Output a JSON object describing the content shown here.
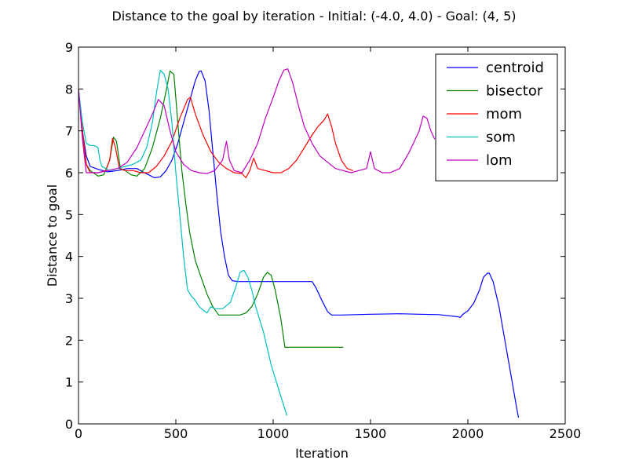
{
  "chart_data": {
    "type": "line",
    "title": "Distance to the goal by iteration - Initial: (-4.0, 4.0) - Goal: (4, 5)",
    "xlabel": "Iteration",
    "ylabel": "Distance to goal",
    "xlim": [
      0,
      2500
    ],
    "ylim": [
      0,
      9
    ],
    "xticks": [
      0,
      500,
      1000,
      1500,
      2000,
      2500
    ],
    "yticks": [
      0,
      1,
      2,
      3,
      4,
      5,
      6,
      7,
      8,
      9
    ],
    "grid": false,
    "legend_position": "top-right",
    "series": [
      {
        "name": "centroid",
        "color": "#0000ff",
        "points": [
          [
            0,
            8.0
          ],
          [
            20,
            7.0
          ],
          [
            40,
            6.4
          ],
          [
            60,
            6.15
          ],
          [
            100,
            6.08
          ],
          [
            150,
            6.02
          ],
          [
            200,
            6.05
          ],
          [
            250,
            6.1
          ],
          [
            300,
            6.1
          ],
          [
            330,
            6.02
          ],
          [
            360,
            5.95
          ],
          [
            390,
            5.88
          ],
          [
            420,
            5.9
          ],
          [
            450,
            6.05
          ],
          [
            480,
            6.3
          ],
          [
            510,
            6.7
          ],
          [
            540,
            7.2
          ],
          [
            570,
            7.7
          ],
          [
            600,
            8.2
          ],
          [
            620,
            8.42
          ],
          [
            630,
            8.43
          ],
          [
            650,
            8.2
          ],
          [
            670,
            7.5
          ],
          [
            690,
            6.5
          ],
          [
            710,
            5.5
          ],
          [
            730,
            4.6
          ],
          [
            750,
            4.0
          ],
          [
            770,
            3.55
          ],
          [
            790,
            3.42
          ],
          [
            820,
            3.4
          ],
          [
            1000,
            3.4
          ],
          [
            1200,
            3.4
          ],
          [
            1220,
            3.25
          ],
          [
            1250,
            2.95
          ],
          [
            1280,
            2.68
          ],
          [
            1300,
            2.6
          ],
          [
            1350,
            2.6
          ],
          [
            1500,
            2.62
          ],
          [
            1650,
            2.63
          ],
          [
            1750,
            2.62
          ],
          [
            1850,
            2.61
          ],
          [
            1950,
            2.56
          ],
          [
            1960,
            2.54
          ],
          [
            1975,
            2.62
          ],
          [
            2000,
            2.7
          ],
          [
            2030,
            2.88
          ],
          [
            2060,
            3.2
          ],
          [
            2080,
            3.5
          ],
          [
            2100,
            3.6
          ],
          [
            2110,
            3.6
          ],
          [
            2130,
            3.4
          ],
          [
            2160,
            2.8
          ],
          [
            2190,
            2.0
          ],
          [
            2220,
            1.2
          ],
          [
            2250,
            0.4
          ],
          [
            2260,
            0.15
          ]
        ]
      },
      {
        "name": "bisector",
        "color": "#008000",
        "points": [
          [
            0,
            8.0
          ],
          [
            20,
            7.0
          ],
          [
            40,
            6.2
          ],
          [
            60,
            6.05
          ],
          [
            100,
            5.92
          ],
          [
            130,
            5.95
          ],
          [
            160,
            6.3
          ],
          [
            180,
            6.85
          ],
          [
            195,
            6.75
          ],
          [
            215,
            6.1
          ],
          [
            240,
            6.05
          ],
          [
            270,
            5.95
          ],
          [
            300,
            5.92
          ],
          [
            340,
            6.1
          ],
          [
            380,
            6.6
          ],
          [
            420,
            7.3
          ],
          [
            450,
            7.95
          ],
          [
            470,
            8.43
          ],
          [
            490,
            8.35
          ],
          [
            510,
            7.2
          ],
          [
            530,
            6.1
          ],
          [
            550,
            5.3
          ],
          [
            570,
            4.6
          ],
          [
            600,
            3.9
          ],
          [
            630,
            3.5
          ],
          [
            660,
            3.1
          ],
          [
            690,
            2.8
          ],
          [
            720,
            2.6
          ],
          [
            760,
            2.6
          ],
          [
            800,
            2.6
          ],
          [
            830,
            2.6
          ],
          [
            860,
            2.65
          ],
          [
            890,
            2.8
          ],
          [
            920,
            3.1
          ],
          [
            950,
            3.5
          ],
          [
            970,
            3.62
          ],
          [
            990,
            3.55
          ],
          [
            1010,
            3.2
          ],
          [
            1040,
            2.5
          ],
          [
            1060,
            1.83
          ],
          [
            1100,
            1.83
          ],
          [
            1200,
            1.83
          ],
          [
            1300,
            1.83
          ],
          [
            1360,
            1.83
          ]
        ]
      },
      {
        "name": "mom",
        "color": "#ff0000",
        "points": [
          [
            0,
            8.0
          ],
          [
            20,
            7.0
          ],
          [
            40,
            6.2
          ],
          [
            60,
            6.0
          ],
          [
            100,
            6.0
          ],
          [
            140,
            6.05
          ],
          [
            160,
            6.3
          ],
          [
            175,
            6.82
          ],
          [
            190,
            6.6
          ],
          [
            210,
            6.1
          ],
          [
            240,
            6.05
          ],
          [
            280,
            6.05
          ],
          [
            320,
            6.0
          ],
          [
            360,
            6.0
          ],
          [
            400,
            6.15
          ],
          [
            440,
            6.4
          ],
          [
            480,
            6.75
          ],
          [
            520,
            7.3
          ],
          [
            560,
            7.75
          ],
          [
            575,
            7.8
          ],
          [
            600,
            7.4
          ],
          [
            640,
            6.9
          ],
          [
            680,
            6.5
          ],
          [
            720,
            6.25
          ],
          [
            760,
            6.1
          ],
          [
            800,
            6.0
          ],
          [
            840,
            5.98
          ],
          [
            860,
            5.88
          ],
          [
            880,
            6.05
          ],
          [
            900,
            6.35
          ],
          [
            920,
            6.1
          ],
          [
            960,
            6.05
          ],
          [
            1000,
            6.0
          ],
          [
            1040,
            6.0
          ],
          [
            1080,
            6.1
          ],
          [
            1120,
            6.3
          ],
          [
            1160,
            6.6
          ],
          [
            1200,
            6.9
          ],
          [
            1230,
            7.1
          ],
          [
            1260,
            7.25
          ],
          [
            1280,
            7.4
          ],
          [
            1300,
            7.1
          ],
          [
            1320,
            6.7
          ],
          [
            1350,
            6.3
          ],
          [
            1380,
            6.1
          ],
          [
            1410,
            6.05
          ]
        ]
      },
      {
        "name": "som",
        "color": "#00bfbf",
        "points": [
          [
            0,
            8.0
          ],
          [
            20,
            7.2
          ],
          [
            40,
            6.7
          ],
          [
            60,
            6.65
          ],
          [
            80,
            6.65
          ],
          [
            100,
            6.6
          ],
          [
            110,
            6.3
          ],
          [
            120,
            6.15
          ],
          [
            160,
            6.05
          ],
          [
            200,
            6.1
          ],
          [
            240,
            6.15
          ],
          [
            280,
            6.2
          ],
          [
            320,
            6.3
          ],
          [
            350,
            6.6
          ],
          [
            380,
            7.2
          ],
          [
            400,
            7.9
          ],
          [
            420,
            8.45
          ],
          [
            440,
            8.35
          ],
          [
            460,
            8.0
          ],
          [
            480,
            7.2
          ],
          [
            500,
            6.0
          ],
          [
            520,
            5.0
          ],
          [
            540,
            4.0
          ],
          [
            560,
            3.2
          ],
          [
            580,
            3.05
          ],
          [
            600,
            2.95
          ],
          [
            620,
            2.8
          ],
          [
            640,
            2.72
          ],
          [
            660,
            2.65
          ],
          [
            680,
            2.8
          ],
          [
            700,
            2.75
          ],
          [
            740,
            2.75
          ],
          [
            780,
            2.9
          ],
          [
            810,
            3.3
          ],
          [
            830,
            3.62
          ],
          [
            850,
            3.67
          ],
          [
            870,
            3.5
          ],
          [
            890,
            3.2
          ],
          [
            910,
            2.8
          ],
          [
            930,
            2.5
          ],
          [
            950,
            2.2
          ],
          [
            970,
            1.8
          ],
          [
            990,
            1.4
          ],
          [
            1010,
            1.1
          ],
          [
            1030,
            0.8
          ],
          [
            1050,
            0.5
          ],
          [
            1070,
            0.2
          ]
        ]
      },
      {
        "name": "lom",
        "color": "#bf00bf",
        "points": [
          [
            0,
            8.0
          ],
          [
            20,
            6.8
          ],
          [
            40,
            6.0
          ],
          [
            60,
            6.0
          ],
          [
            100,
            6.0
          ],
          [
            150,
            6.05
          ],
          [
            200,
            6.1
          ],
          [
            250,
            6.25
          ],
          [
            300,
            6.6
          ],
          [
            340,
            7.0
          ],
          [
            380,
            7.4
          ],
          [
            410,
            7.75
          ],
          [
            440,
            7.6
          ],
          [
            470,
            7.0
          ],
          [
            500,
            6.5
          ],
          [
            540,
            6.2
          ],
          [
            580,
            6.05
          ],
          [
            620,
            6.0
          ],
          [
            660,
            5.98
          ],
          [
            700,
            6.05
          ],
          [
            740,
            6.3
          ],
          [
            760,
            6.75
          ],
          [
            775,
            6.3
          ],
          [
            800,
            6.05
          ],
          [
            840,
            6.0
          ],
          [
            880,
            6.3
          ],
          [
            920,
            6.7
          ],
          [
            960,
            7.3
          ],
          [
            1000,
            7.8
          ],
          [
            1030,
            8.2
          ],
          [
            1055,
            8.45
          ],
          [
            1075,
            8.48
          ],
          [
            1100,
            8.15
          ],
          [
            1130,
            7.6
          ],
          [
            1160,
            7.1
          ],
          [
            1200,
            6.7
          ],
          [
            1240,
            6.4
          ],
          [
            1280,
            6.25
          ],
          [
            1320,
            6.1
          ],
          [
            1360,
            6.05
          ],
          [
            1400,
            6.0
          ],
          [
            1440,
            6.05
          ],
          [
            1480,
            6.1
          ],
          [
            1500,
            6.5
          ],
          [
            1520,
            6.1
          ],
          [
            1560,
            6.0
          ],
          [
            1600,
            6.0
          ],
          [
            1650,
            6.1
          ],
          [
            1700,
            6.5
          ],
          [
            1750,
            7.0
          ],
          [
            1770,
            7.35
          ],
          [
            1790,
            7.3
          ],
          [
            1810,
            7.0
          ],
          [
            1830,
            6.8
          ]
        ]
      }
    ]
  }
}
